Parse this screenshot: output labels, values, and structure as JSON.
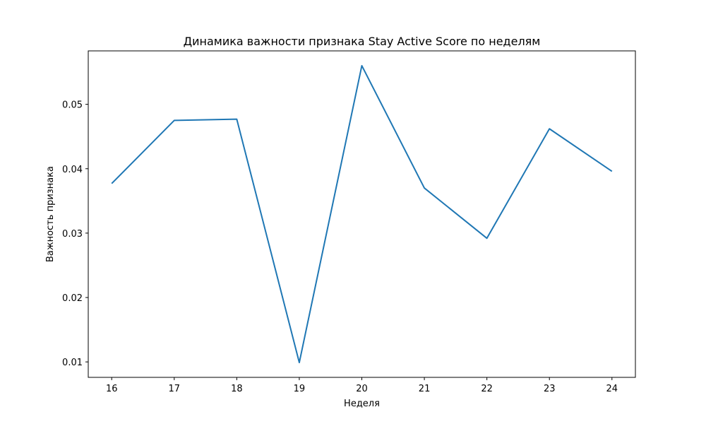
{
  "chart_data": {
    "type": "line",
    "title": "Динамика важности признака Stay Active Score по неделям",
    "xlabel": "Неделя",
    "ylabel": "Важность признака",
    "x": [
      16,
      17,
      18,
      19,
      20,
      21,
      22,
      23,
      24
    ],
    "series": [
      {
        "values": [
          0.0377,
          0.0475,
          0.0477,
          0.0099,
          0.056,
          0.037,
          0.0292,
          0.0462,
          0.0396
        ],
        "color": "#1f77b4"
      }
    ],
    "xticks": [
      "16",
      "17",
      "18",
      "19",
      "20",
      "21",
      "22",
      "23",
      "24"
    ],
    "yticks": [
      "0.01",
      "0.02",
      "0.03",
      "0.04",
      "0.05"
    ],
    "xlim": [
      15.625,
      24.375
    ],
    "ylim": [
      0.0076,
      0.0583
    ],
    "grid": false
  }
}
